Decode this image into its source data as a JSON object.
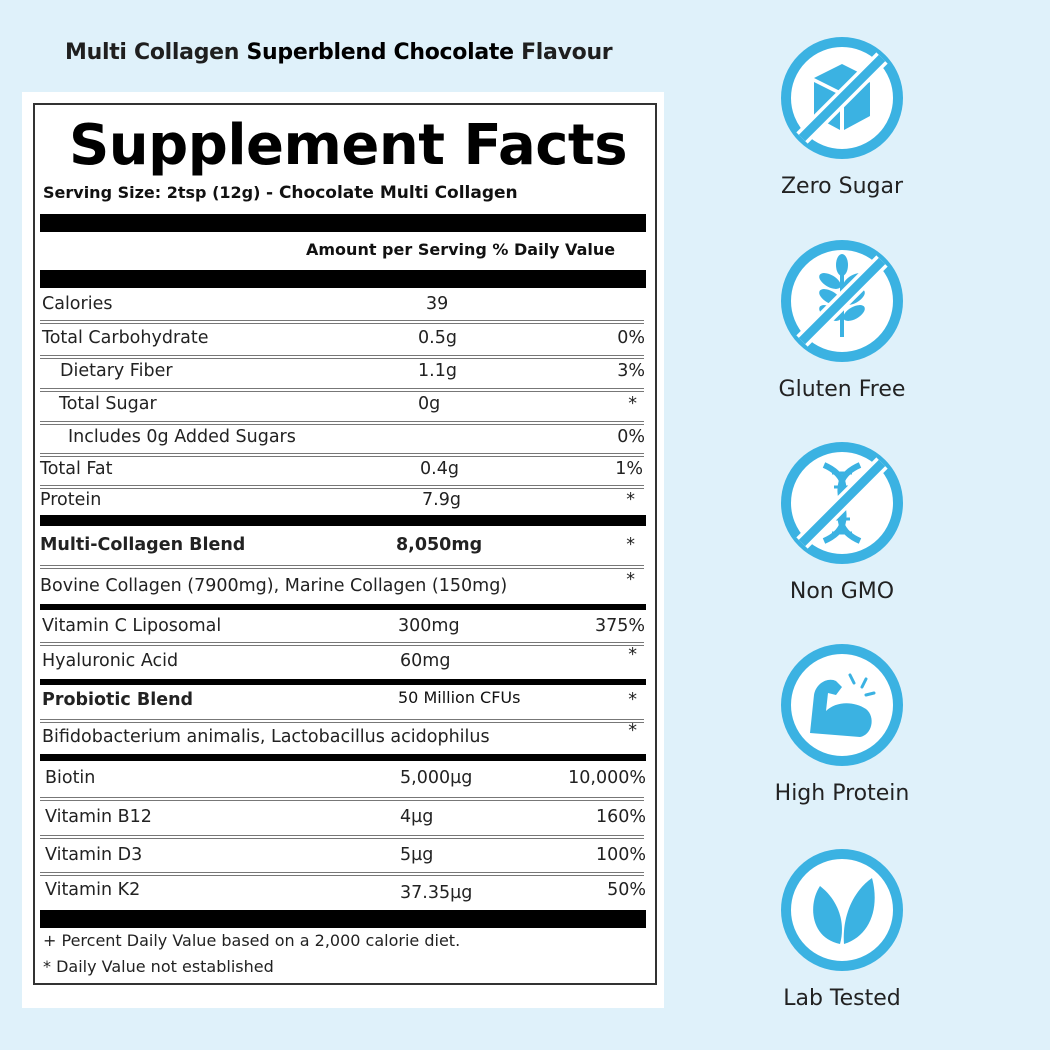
{
  "product_title": {
    "part1": "Multi Collagen",
    "part2": "Superblend Chocolate",
    "part3": "Flavour"
  },
  "label": {
    "title": "Supplement Facts",
    "serving_size": "Serving Size: 2tsp (12g)",
    "serving_desc": "- Chocolate Multi Collagen",
    "header": "Amount per Serving % Daily Value",
    "rows": [
      {
        "label": "Calories",
        "amount": "39",
        "dv": ""
      },
      {
        "label": "Total Carbohydrate",
        "amount": "0.5g",
        "dv": "0%"
      },
      {
        "label": "Dietary Fiber",
        "amount": "1.1g",
        "dv": "3%"
      },
      {
        "label": "Total Sugar",
        "amount": "0g",
        "dv": "*"
      },
      {
        "label": "Includes 0g Added Sugars",
        "amount": "",
        "dv": "0%"
      },
      {
        "label": "Total Fat",
        "amount": "0.4g",
        "dv": "1%"
      },
      {
        "label": "Protein",
        "amount": "7.9g",
        "dv": "*"
      },
      {
        "label": "Multi-Collagen Blend",
        "amount": "8,050mg",
        "dv": "*"
      },
      {
        "label": "Bovine Collagen (7900mg), Marine Collagen (150mg)",
        "amount": "",
        "dv": "*"
      },
      {
        "label": "Vitamin C Liposomal",
        "amount": "300mg",
        "dv": "375%"
      },
      {
        "label": "Hyaluronic Acid",
        "amount": "60mg",
        "dv": "*"
      },
      {
        "label": "Probiotic Blend",
        "amount": "50 Million CFUs",
        "dv": "*"
      },
      {
        "label": "Bifidobacterium animalis, Lactobacillus acidophilus",
        "amount": "",
        "dv": "*"
      },
      {
        "label": "Biotin",
        "amount": "5,000µg",
        "dv": "10,000%"
      },
      {
        "label": "Vitamin B12",
        "amount": "4µg",
        "dv": "160%"
      },
      {
        "label": "Vitamin D3",
        "amount": "5µg",
        "dv": "100%"
      },
      {
        "label": "Vitamin K2",
        "amount": "37.35µg",
        "dv": "50%"
      }
    ],
    "footnotes": [
      "+ Percent Daily Value based on a 2,000 calorie diet.",
      "* Daily Value not established"
    ]
  },
  "badges": [
    {
      "label": "Zero Sugar",
      "icon": "no-sugar-cube-icon"
    },
    {
      "label": "Gluten Free",
      "icon": "no-wheat-icon"
    },
    {
      "label": "Non GMO",
      "icon": "no-dna-icon"
    },
    {
      "label": "High Protein",
      "icon": "flexed-arm-icon"
    },
    {
      "label": "Lab Tested",
      "icon": "leaves-icon"
    }
  ],
  "colors": {
    "background": "#dff1fa",
    "accent": "#3bb2e2",
    "text": "#111111"
  }
}
